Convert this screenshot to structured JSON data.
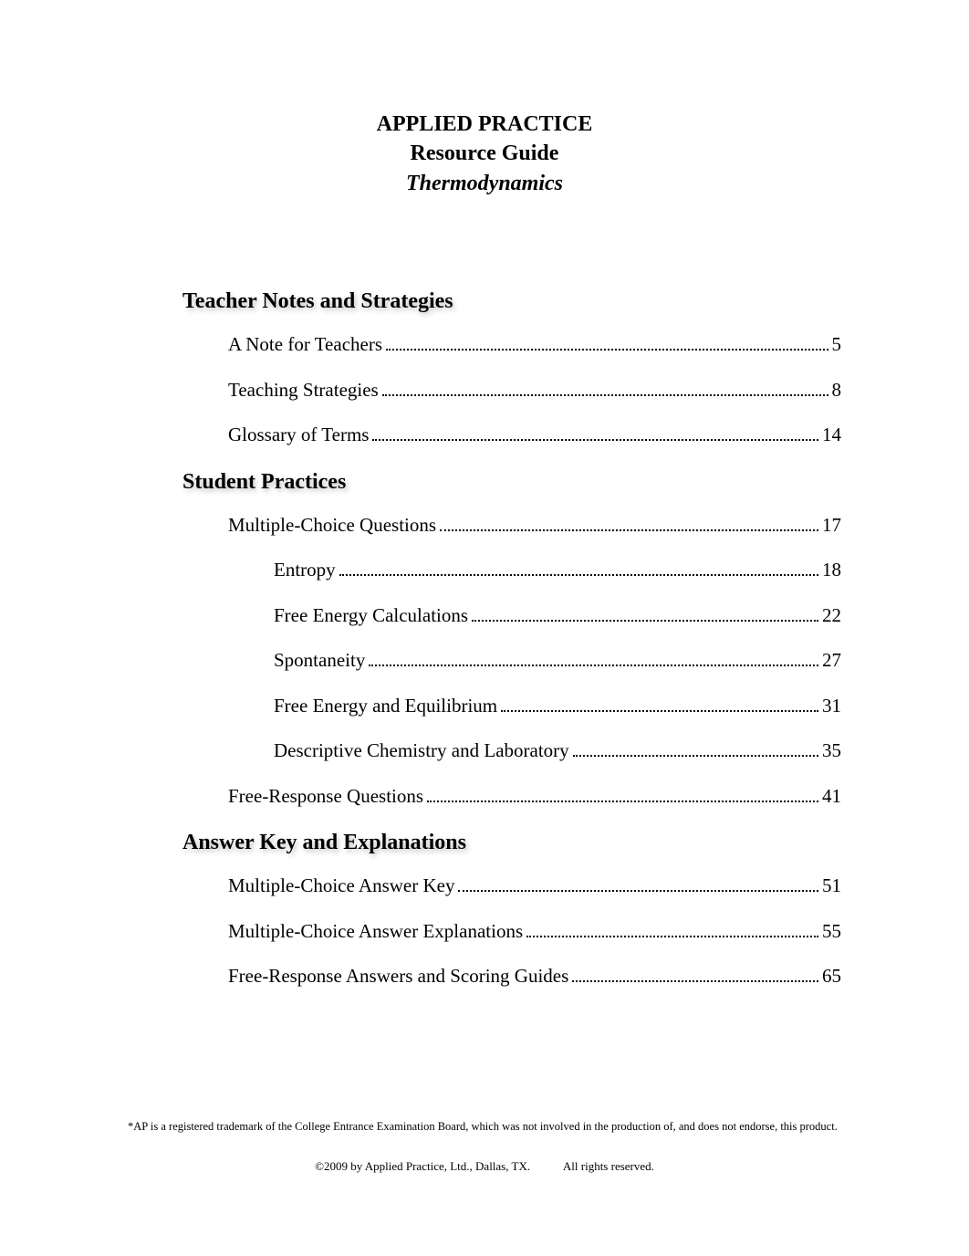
{
  "title": {
    "line1": "APPLIED PRACTICE",
    "line2": "Resource Guide",
    "line3": "Thermodynamics"
  },
  "sections": [
    {
      "heading": "Teacher Notes and Strategies",
      "entries": [
        {
          "label": "A Note for Teachers",
          "page": "5",
          "level": 1
        },
        {
          "label": "Teaching Strategies",
          "page": "8",
          "level": 1
        },
        {
          "label": "Glossary of Terms",
          "page": "14",
          "level": 1
        }
      ]
    },
    {
      "heading": "Student Practices",
      "entries": [
        {
          "label": "Multiple-Choice Questions",
          "page": "17",
          "level": 1
        },
        {
          "label": "Entropy",
          "page": "18",
          "level": 2
        },
        {
          "label": "Free Energy Calculations",
          "page": "22",
          "level": 2
        },
        {
          "label": "Spontaneity",
          "page": "27",
          "level": 2
        },
        {
          "label": "Free Energy and Equilibrium",
          "page": "31",
          "level": 2
        },
        {
          "label": "Descriptive Chemistry and Laboratory",
          "page": "35",
          "level": 2
        },
        {
          "label": "Free-Response Questions",
          "page": "41",
          "level": 1
        }
      ]
    },
    {
      "heading": "Answer Key and Explanations",
      "entries": [
        {
          "label": "Multiple-Choice Answer Key",
          "page": "51",
          "level": 1
        },
        {
          "label": "Multiple-Choice Answer Explanations",
          "page": "55",
          "level": 1
        },
        {
          "label": "Free-Response Answers and Scoring Guides",
          "page": "65",
          "level": 1
        }
      ]
    }
  ],
  "disclaimer": "*AP is a registered trademark of the College Entrance Examination Board, which was not involved in the production of, and does not endorse, this product.",
  "copyright_left": "©2009 by Applied Practice, Ltd., Dallas, TX.",
  "copyright_right": "All rights reserved.",
  "styles": {
    "page_bg": "#ffffff",
    "text_color": "#000000",
    "title_fontsize": 24,
    "heading_fontsize": 24,
    "entry_fontsize": 21,
    "disclaimer_fontsize": 12.5,
    "copyright_fontsize": 13,
    "heading_shadow": "2px 3px 6px rgba(0,0,0,0.25)"
  }
}
